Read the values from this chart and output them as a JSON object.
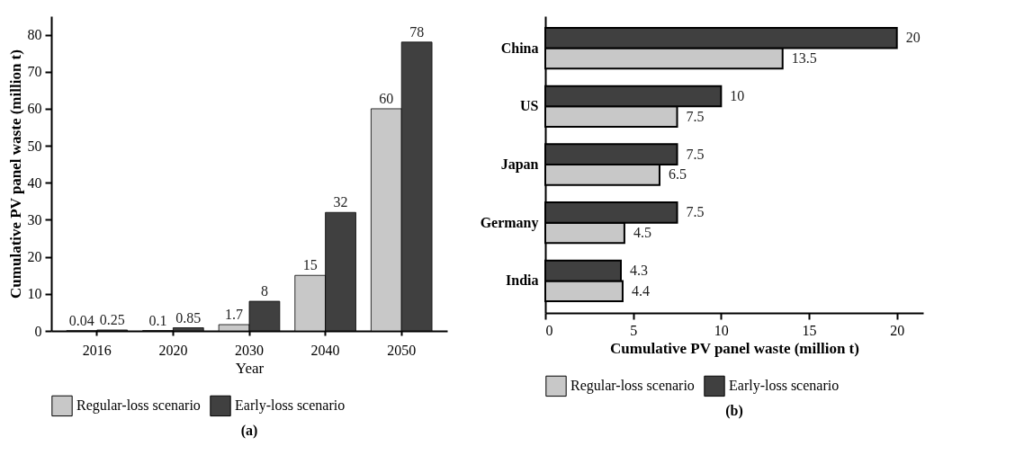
{
  "chart_data": [
    {
      "type": "bar",
      "title": "(a)",
      "xlabel": "Year",
      "ylabel": "Cumulative PV panel waste (million t)",
      "categories": [
        "2016",
        "2020",
        "2030",
        "2040",
        "2050"
      ],
      "series": [
        {
          "name": "Regular-loss scenario",
          "color": "#c8c8c8",
          "values": [
            0.04,
            0.1,
            1.7,
            15,
            60
          ]
        },
        {
          "name": "Early-loss scenario",
          "color": "#404040",
          "values": [
            0.25,
            0.85,
            8,
            32,
            78
          ]
        }
      ],
      "ylim": [
        0,
        85
      ],
      "yticks": [
        0,
        10,
        20,
        30,
        40,
        50,
        60,
        70,
        80
      ],
      "data_labels": true,
      "legend": "bottom",
      "grid": false
    },
    {
      "type": "bar",
      "orientation": "horizontal",
      "title": "(b)",
      "xlabel": "Cumulative PV panel waste (million t)",
      "categories": [
        "China",
        "US",
        "Japan",
        "Germany",
        "India"
      ],
      "series": [
        {
          "name": "Regular-loss scenario",
          "color": "#c8c8c8",
          "values": [
            13.5,
            7.5,
            6.5,
            4.5,
            4.4
          ]
        },
        {
          "name": "Early-loss scenario",
          "color": "#404040",
          "values": [
            20,
            10,
            7.5,
            7.5,
            4.3
          ]
        }
      ],
      "xlim": [
        0,
        21.5
      ],
      "xticks": [
        0,
        5,
        10,
        15,
        20
      ],
      "data_labels": true,
      "legend": "bottom",
      "grid": false
    }
  ]
}
